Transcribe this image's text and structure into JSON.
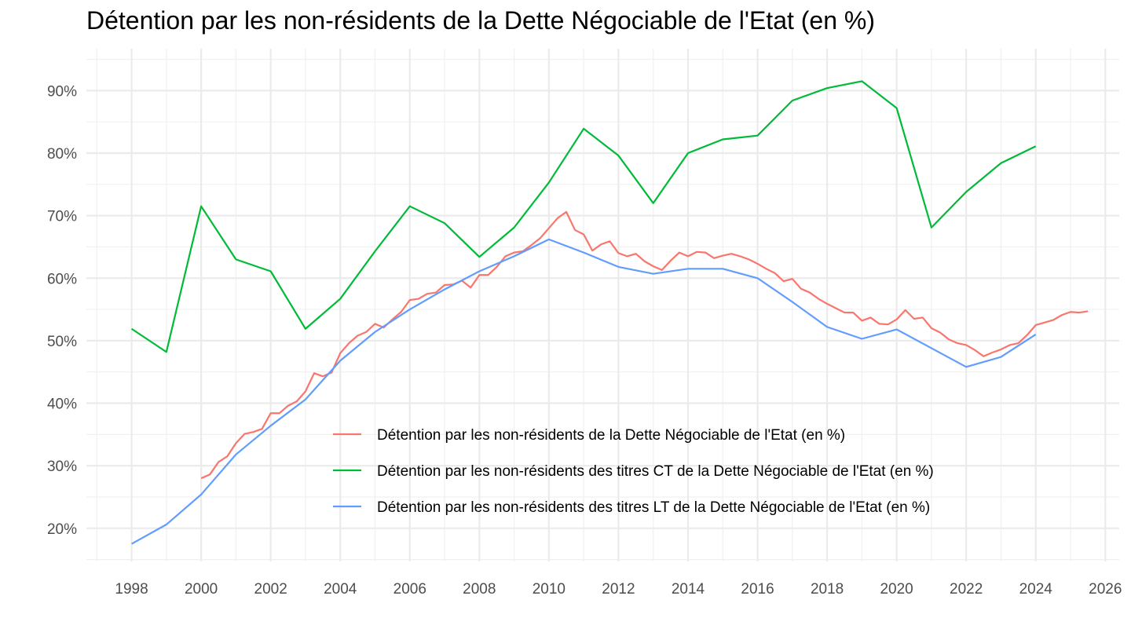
{
  "chart_data": {
    "type": "line",
    "title": "Détention par les non-résidents de la Dette Négociable de l'Etat (en %)",
    "xlabel": "",
    "ylabel": "",
    "xlim": [
      1996.7,
      2026.4
    ],
    "ylim": [
      14.7,
      96.7
    ],
    "x_ticks": [
      1998,
      2000,
      2002,
      2004,
      2006,
      2008,
      2010,
      2012,
      2014,
      2016,
      2018,
      2020,
      2022,
      2024,
      2026
    ],
    "x_tick_labels": [
      "1998",
      "2000",
      "2002",
      "2004",
      "2006",
      "2008",
      "2010",
      "2012",
      "2014",
      "2016",
      "2018",
      "2020",
      "2022",
      "2024",
      "2026"
    ],
    "y_ticks": [
      20,
      30,
      40,
      50,
      60,
      70,
      80,
      90
    ],
    "y_tick_labels": [
      "20%",
      "30%",
      "40%",
      "50%",
      "60%",
      "70%",
      "80%",
      "90%"
    ],
    "grid": true,
    "legend_position": "inside-bottom-right",
    "series": [
      {
        "name": "Détention par les non-résidents de la Dette Négociable de l'Etat (en %)",
        "color": "#F8766D",
        "points": [
          [
            2000.0,
            28.0
          ],
          [
            2000.25,
            28.6
          ],
          [
            2000.5,
            30.6
          ],
          [
            2000.75,
            31.5
          ],
          [
            2001.0,
            33.6
          ],
          [
            2001.25,
            35.1
          ],
          [
            2001.5,
            35.4
          ],
          [
            2001.75,
            35.9
          ],
          [
            2002.0,
            38.4
          ],
          [
            2002.25,
            38.4
          ],
          [
            2002.5,
            39.6
          ],
          [
            2002.75,
            40.3
          ],
          [
            2003.0,
            41.9
          ],
          [
            2003.25,
            44.8
          ],
          [
            2003.5,
            44.3
          ],
          [
            2003.75,
            44.9
          ],
          [
            2004.0,
            48.0
          ],
          [
            2004.25,
            49.6
          ],
          [
            2004.5,
            50.8
          ],
          [
            2004.75,
            51.4
          ],
          [
            2005.0,
            52.7
          ],
          [
            2005.25,
            52.1
          ],
          [
            2005.5,
            53.4
          ],
          [
            2005.75,
            54.6
          ],
          [
            2006.0,
            56.5
          ],
          [
            2006.25,
            56.7
          ],
          [
            2006.5,
            57.5
          ],
          [
            2006.75,
            57.7
          ],
          [
            2007.0,
            58.9
          ],
          [
            2007.25,
            59.0
          ],
          [
            2007.5,
            59.6
          ],
          [
            2007.75,
            58.5
          ],
          [
            2008.0,
            60.5
          ],
          [
            2008.25,
            60.5
          ],
          [
            2008.5,
            61.8
          ],
          [
            2008.75,
            63.5
          ],
          [
            2009.0,
            64.1
          ],
          [
            2009.25,
            64.3
          ],
          [
            2009.5,
            65.3
          ],
          [
            2009.75,
            66.4
          ],
          [
            2010.0,
            68.0
          ],
          [
            2010.25,
            69.6
          ],
          [
            2010.5,
            70.6
          ],
          [
            2010.75,
            67.7
          ],
          [
            2011.0,
            67.0
          ],
          [
            2011.25,
            64.4
          ],
          [
            2011.5,
            65.4
          ],
          [
            2011.75,
            65.9
          ],
          [
            2012.0,
            64.0
          ],
          [
            2012.25,
            63.5
          ],
          [
            2012.5,
            63.9
          ],
          [
            2012.75,
            62.7
          ],
          [
            2013.0,
            61.9
          ],
          [
            2013.25,
            61.3
          ],
          [
            2013.5,
            62.8
          ],
          [
            2013.75,
            64.1
          ],
          [
            2014.0,
            63.5
          ],
          [
            2014.25,
            64.2
          ],
          [
            2014.5,
            64.1
          ],
          [
            2014.75,
            63.2
          ],
          [
            2015.0,
            63.6
          ],
          [
            2015.25,
            63.9
          ],
          [
            2015.5,
            63.5
          ],
          [
            2015.75,
            63.0
          ],
          [
            2016.0,
            62.3
          ],
          [
            2016.25,
            61.5
          ],
          [
            2016.5,
            60.8
          ],
          [
            2016.75,
            59.5
          ],
          [
            2017.0,
            59.9
          ],
          [
            2017.25,
            58.3
          ],
          [
            2017.5,
            57.7
          ],
          [
            2017.75,
            56.7
          ],
          [
            2018.0,
            55.9
          ],
          [
            2018.25,
            55.2
          ],
          [
            2018.5,
            54.5
          ],
          [
            2018.75,
            54.5
          ],
          [
            2019.0,
            53.2
          ],
          [
            2019.25,
            53.7
          ],
          [
            2019.5,
            52.7
          ],
          [
            2019.75,
            52.6
          ],
          [
            2020.0,
            53.4
          ],
          [
            2020.25,
            54.9
          ],
          [
            2020.5,
            53.5
          ],
          [
            2020.75,
            53.7
          ],
          [
            2021.0,
            52.0
          ],
          [
            2021.25,
            51.3
          ],
          [
            2021.5,
            50.2
          ],
          [
            2021.75,
            49.6
          ],
          [
            2022.0,
            49.3
          ],
          [
            2022.25,
            48.5
          ],
          [
            2022.5,
            47.5
          ],
          [
            2022.75,
            48.1
          ],
          [
            2023.0,
            48.6
          ],
          [
            2023.25,
            49.3
          ],
          [
            2023.5,
            49.6
          ],
          [
            2023.75,
            50.9
          ],
          [
            2024.0,
            52.5
          ],
          [
            2024.25,
            52.9
          ],
          [
            2024.5,
            53.3
          ],
          [
            2024.75,
            54.1
          ],
          [
            2025.0,
            54.6
          ],
          [
            2025.25,
            54.5
          ],
          [
            2025.5,
            54.7
          ]
        ]
      },
      {
        "name": "Détention par les non-résidents des titres CT de la Dette Négociable de l'Etat (en %)",
        "color": "#00BA38",
        "points": [
          [
            1998,
            51.9
          ],
          [
            1999,
            48.2
          ],
          [
            2000,
            71.5
          ],
          [
            2001,
            63.0
          ],
          [
            2002,
            61.1
          ],
          [
            2003,
            51.9
          ],
          [
            2004,
            56.7
          ],
          [
            2005,
            64.3
          ],
          [
            2006,
            71.5
          ],
          [
            2007,
            68.8
          ],
          [
            2008,
            63.4
          ],
          [
            2009,
            68.1
          ],
          [
            2010,
            75.3
          ],
          [
            2011,
            83.9
          ],
          [
            2012,
            79.6
          ],
          [
            2013,
            72.0
          ],
          [
            2014,
            80.0
          ],
          [
            2015,
            82.2
          ],
          [
            2016,
            82.8
          ],
          [
            2017,
            88.4
          ],
          [
            2018,
            90.4
          ],
          [
            2019,
            91.5
          ],
          [
            2020,
            87.2
          ],
          [
            2021,
            68.1
          ],
          [
            2022,
            73.8
          ],
          [
            2023,
            78.4
          ],
          [
            2024,
            81.1
          ]
        ]
      },
      {
        "name": "Détention par les non-résidents des titres LT de la Dette Négociable de l'Etat (en %)",
        "color": "#619CFF",
        "points": [
          [
            1998,
            17.5
          ],
          [
            1999,
            20.6
          ],
          [
            2000,
            25.4
          ],
          [
            2001,
            31.8
          ],
          [
            2002,
            36.4
          ],
          [
            2003,
            40.6
          ],
          [
            2004,
            46.8
          ],
          [
            2005,
            51.4
          ],
          [
            2006,
            55.0
          ],
          [
            2007,
            58.2
          ],
          [
            2008,
            61.1
          ],
          [
            2009,
            63.5
          ],
          [
            2010,
            66.2
          ],
          [
            2011,
            64.1
          ],
          [
            2012,
            61.8
          ],
          [
            2013,
            60.7
          ],
          [
            2014,
            61.5
          ],
          [
            2015,
            61.5
          ],
          [
            2016,
            60.0
          ],
          [
            2017,
            56.2
          ],
          [
            2018,
            52.2
          ],
          [
            2019,
            50.3
          ],
          [
            2020,
            51.8
          ],
          [
            2021,
            48.8
          ],
          [
            2022,
            45.8
          ],
          [
            2023,
            47.4
          ],
          [
            2024,
            51.0
          ]
        ]
      }
    ]
  }
}
